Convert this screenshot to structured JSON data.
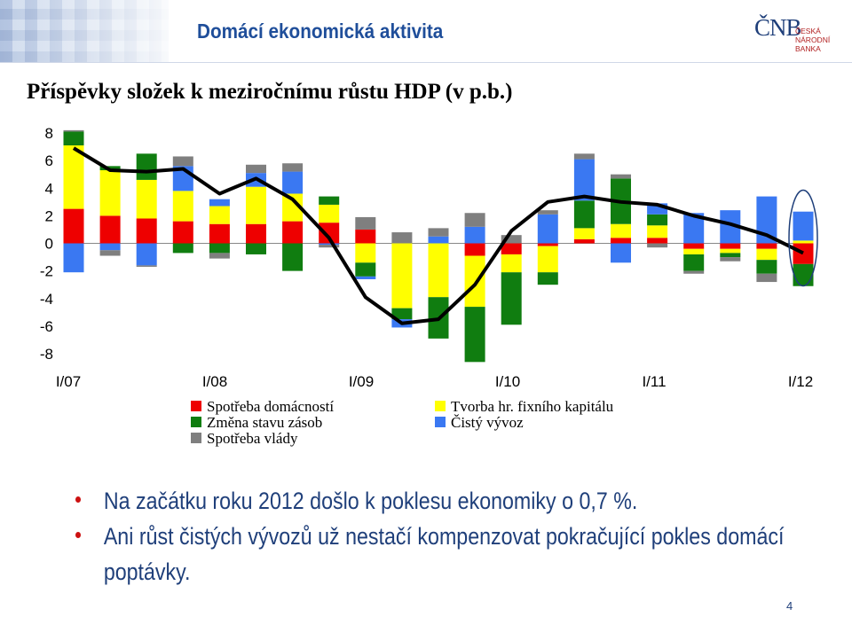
{
  "header": {
    "title": "Domácí ekonomická aktivita",
    "logo_mark": "ČNB",
    "logo_line1": "ČESKÁ",
    "logo_line2": "NÁRODNÍ BANKA"
  },
  "chart_data": {
    "type": "bar",
    "subtype": "stacked bar with line",
    "title": "Příspěvky složek k meziročnímu růstu HDP (v p.b.)",
    "ylim": [
      -8,
      8
    ],
    "yticks": [
      "8",
      "6",
      "4",
      "2",
      "0",
      "-2",
      "-4",
      "-6",
      "-8"
    ],
    "xticks": [
      "I/07",
      "I/08",
      "I/09",
      "I/10",
      "I/11",
      "I/12"
    ],
    "legend_position": "bottom",
    "categories": [
      "I/07",
      "II/07",
      "III/07",
      "IV/07",
      "I/08",
      "II/08",
      "III/08",
      "IV/08",
      "I/09",
      "II/09",
      "III/09",
      "IV/09",
      "I/10",
      "II/10",
      "III/10",
      "IV/10",
      "I/11",
      "II/11",
      "III/11",
      "IV/11",
      "I/12"
    ],
    "series": [
      {
        "name": "Spotřeba domácností",
        "color": "#ee0000",
        "values": [
          2.5,
          2.0,
          1.8,
          1.6,
          1.4,
          1.4,
          1.6,
          1.5,
          1.0,
          0,
          0,
          -0.9,
          -0.8,
          -0.2,
          0.3,
          0.4,
          0.4,
          -0.4,
          -0.4,
          -0.4,
          -1.5
        ]
      },
      {
        "name": "Tvorba hr. fixního kapitálu",
        "color": "#ffff00",
        "values": [
          4.6,
          3.3,
          2.8,
          2.2,
          1.3,
          2.7,
          2.0,
          1.3,
          -1.4,
          -4.7,
          -3.9,
          -3.7,
          -1.3,
          -1.9,
          0.8,
          1.0,
          0.9,
          -0.4,
          -0.3,
          -0.8,
          0.2
        ]
      },
      {
        "name": "Změna stavu zásob",
        "color": "#107d10",
        "values": [
          1.0,
          0.3,
          1.9,
          -0.7,
          -0.7,
          -0.8,
          -2.0,
          0.6,
          -1.0,
          -0.8,
          -3.0,
          -4.0,
          -3.8,
          -0.9,
          2.0,
          3.3,
          0.8,
          -1.2,
          -0.3,
          -1.0,
          -1.6
        ]
      },
      {
        "name": "Čistý vývoz",
        "color": "#3a78f2",
        "values": [
          -2.1,
          -0.5,
          -1.6,
          1.8,
          0.5,
          1.0,
          1.6,
          -0.1,
          -0.2,
          -0.6,
          0.5,
          1.2,
          0,
          2.1,
          3.0,
          -1.4,
          0.8,
          2.2,
          2.4,
          3.4,
          2.1
        ]
      },
      {
        "name": "Spotřeba vlády",
        "color": "#7f7f7f",
        "values": [
          0.1,
          -0.4,
          -0.1,
          0.7,
          -0.4,
          0.6,
          0.6,
          -0.2,
          0.9,
          0.8,
          0.6,
          1.0,
          0.6,
          0.3,
          0.4,
          0.3,
          -0.3,
          -0.2,
          -0.3,
          -0.6,
          0
        ]
      }
    ],
    "line": {
      "name": "HDP",
      "color": "#000000",
      "values": [
        6.9,
        5.3,
        5.2,
        5.4,
        3.6,
        4.7,
        3.2,
        0.4,
        -3.9,
        -5.8,
        -5.5,
        -3.0,
        0.9,
        3.0,
        3.4,
        3.0,
        2.8,
        2.0,
        1.4,
        0.6,
        -0.7
      ]
    },
    "highlight_index": 20
  },
  "legend": {
    "items": [
      {
        "label": "Spotřeba domácností",
        "color": "#ee0000"
      },
      {
        "label": "Tvorba hr. fixního kapitálu",
        "color": "#ffff00"
      },
      {
        "label": "Změna stavu zásob",
        "color": "#107d10"
      },
      {
        "label": "Čistý vývoz",
        "color": "#3a78f2"
      },
      {
        "label": "Spotřeba vlády",
        "color": "#7f7f7f"
      }
    ]
  },
  "bullets": [
    "Na začátku roku 2012 došlo k poklesu ekonomiky o 0,7 %.",
    "Ani růst čistých vývozů už nestačí kompenzovat pokračující pokles domácí poptávky."
  ],
  "page_number": "4"
}
